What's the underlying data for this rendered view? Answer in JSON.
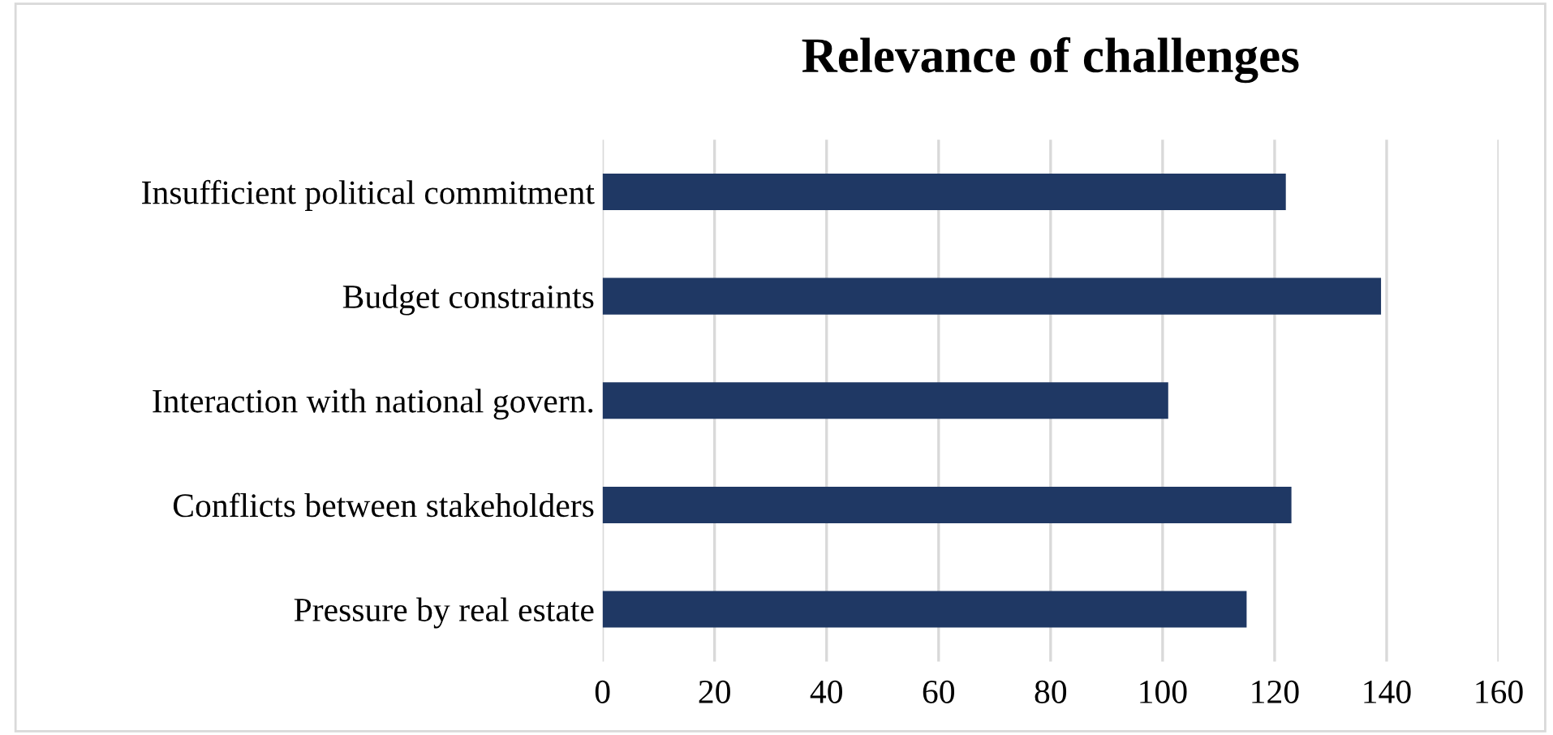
{
  "chart_data": {
    "type": "bar",
    "orientation": "horizontal",
    "title": "Relevance of challenges",
    "categories": [
      "Insufficient political commitment",
      "Budget constraints",
      "Interaction with national govern.",
      "Conflicts between stakeholders",
      "Pressure by real estate"
    ],
    "values": [
      122,
      139,
      101,
      123,
      115
    ],
    "color": "#1f3864",
    "xlim": [
      0,
      160
    ],
    "xticks": [
      0,
      20,
      40,
      60,
      80,
      100,
      120,
      140,
      160
    ],
    "grid": "x"
  }
}
